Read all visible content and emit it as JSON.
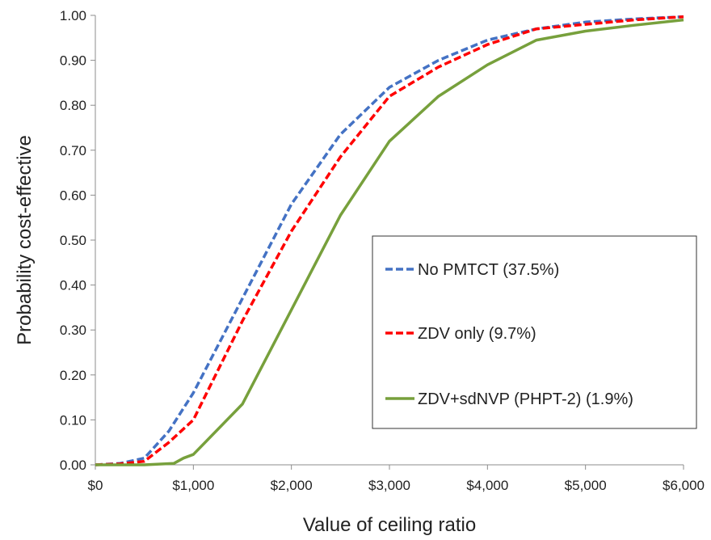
{
  "chart_data": {
    "type": "line",
    "title": "",
    "xlabel": "Value of ceiling ratio",
    "ylabel": "Probability cost-effective",
    "xlim": [
      0,
      6000
    ],
    "ylim": [
      0,
      1
    ],
    "x_ticks": [
      0,
      1000,
      2000,
      3000,
      4000,
      5000,
      6000
    ],
    "x_tick_labels": [
      "$0",
      "$1,000",
      "$2,000",
      "$3,000",
      "$4,000",
      "$5,000",
      "$6,000"
    ],
    "y_ticks": [
      0,
      0.1,
      0.2,
      0.3,
      0.4,
      0.5,
      0.6,
      0.7,
      0.8,
      0.9,
      1.0
    ],
    "y_tick_labels": [
      "0.00",
      "0.10",
      "0.20",
      "0.30",
      "0.40",
      "0.50",
      "0.60",
      "0.70",
      "0.80",
      "0.90",
      "1.00"
    ],
    "grid": false,
    "legend_position": "lower-right",
    "series": [
      {
        "name": "No PMTCT (37.5%)",
        "color": "#4472C4",
        "dash": "dashed",
        "x": [
          0,
          250,
          500,
          750,
          1000,
          1500,
          2000,
          2500,
          3000,
          3500,
          4000,
          4500,
          5000,
          5500,
          6000
        ],
        "y": [
          0,
          0.003,
          0.015,
          0.075,
          0.16,
          0.37,
          0.58,
          0.735,
          0.84,
          0.9,
          0.945,
          0.97,
          0.985,
          0.992,
          0.997
        ]
      },
      {
        "name": "ZDV only (9.7%)",
        "color": "#FF0000",
        "dash": "dashed",
        "x": [
          0,
          250,
          500,
          750,
          1000,
          1500,
          2000,
          2500,
          3000,
          3500,
          4000,
          4500,
          5000,
          5500,
          6000
        ],
        "y": [
          0,
          0.002,
          0.008,
          0.05,
          0.1,
          0.32,
          0.52,
          0.685,
          0.82,
          0.885,
          0.935,
          0.97,
          0.98,
          0.99,
          0.997
        ]
      },
      {
        "name": "ZDV+sdNVP (PHPT-2) (1.9%)",
        "color": "#77A03C",
        "dash": "solid",
        "x": [
          0,
          500,
          800,
          900,
          1000,
          1500,
          2000,
          2500,
          3000,
          3500,
          4000,
          4500,
          5000,
          5500,
          6000
        ],
        "y": [
          0,
          0,
          0.003,
          0.015,
          0.023,
          0.135,
          0.345,
          0.555,
          0.72,
          0.82,
          0.89,
          0.945,
          0.965,
          0.978,
          0.99
        ]
      }
    ]
  }
}
